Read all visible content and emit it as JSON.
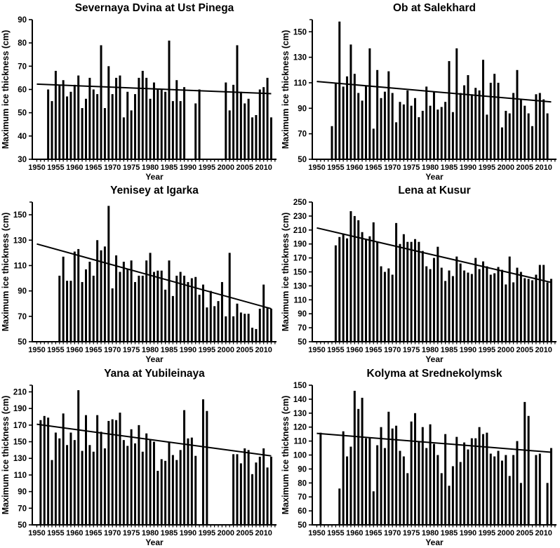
{
  "figure": {
    "background": "#ffffff",
    "bar_color": "#000000",
    "axis_color": "#000000",
    "trend_color": "#000000"
  },
  "chart_data": [
    {
      "type": "bar",
      "title": "Severnaya Dvina at Ust Pinega",
      "xlabel": "Year",
      "ylabel": "Maximum ice thickness (cm)",
      "ylim": [
        30,
        90
      ],
      "yticks": [
        30,
        40,
        50,
        60,
        70,
        80,
        90
      ],
      "xlim": [
        1948.8,
        2013.4
      ],
      "xticks": [
        1950,
        1955,
        1960,
        1965,
        1970,
        1975,
        1980,
        1985,
        1990,
        1995,
        2000,
        2005,
        2010
      ],
      "grid": false,
      "legend": "none",
      "start_year": 1953,
      "values": [
        60,
        55,
        68,
        62,
        64,
        57,
        59,
        62,
        66,
        52,
        56,
        65,
        60,
        58,
        79,
        52,
        70,
        58,
        65,
        66,
        48,
        59,
        51,
        58,
        65,
        68,
        65,
        56,
        63,
        60,
        60,
        59,
        81,
        55,
        64,
        55,
        61,
        null,
        null,
        54,
        60,
        null,
        null,
        null,
        null,
        null,
        null,
        63,
        51,
        62,
        79,
        59,
        54,
        56,
        48,
        49,
        60,
        61,
        65,
        48
      ],
      "trend": {
        "x": [
          1950,
          2012
        ],
        "y": [
          62.3,
          58.2
        ]
      }
    },
    {
      "type": "bar",
      "title": "Ob at Salekhard",
      "xlabel": "Year",
      "ylabel": "Maximum ice thickness (cm)",
      "ylim": [
        50,
        159.5
      ],
      "yticks": [
        50,
        70,
        90,
        110,
        130,
        150
      ],
      "xlim": [
        1948.8,
        2013.4
      ],
      "xticks": [
        1950,
        1955,
        1960,
        1965,
        1970,
        1975,
        1980,
        1985,
        1990,
        1995,
        2000,
        2005,
        2010
      ],
      "grid": false,
      "legend": "none",
      "start_year": 1954,
      "values": [
        76,
        110,
        158,
        107,
        115,
        140,
        117,
        102,
        96,
        108,
        137,
        74,
        120,
        98,
        103,
        119,
        102,
        79,
        95,
        93,
        104,
        92,
        98,
        83,
        88,
        107,
        92,
        103,
        89,
        91,
        95,
        127,
        87,
        137,
        102,
        108,
        116,
        101,
        106,
        104,
        128,
        85,
        110,
        117,
        110,
        75,
        88,
        86,
        102,
        120,
        97,
        92,
        86,
        76,
        101,
        102,
        97,
        86
      ],
      "trend": {
        "x": [
          1950,
          2012
        ],
        "y": [
          111,
          95
        ]
      }
    },
    {
      "type": "bar",
      "title": "Yenisey at Igarka",
      "xlabel": "Year",
      "ylabel": "Maximum ice thickness (cm)",
      "ylim": [
        50,
        160
      ],
      "yticks": [
        50,
        70,
        90,
        110,
        130,
        150
      ],
      "xlim": [
        1948.8,
        2013.4
      ],
      "xticks": [
        1950,
        1955,
        1960,
        1965,
        1970,
        1975,
        1980,
        1985,
        1990,
        1995,
        2000,
        2005,
        2010
      ],
      "grid": false,
      "legend": "none",
      "start_year": 1956,
      "values": [
        102,
        117,
        98,
        98,
        121,
        123,
        97,
        107,
        113,
        102,
        130,
        122,
        125,
        157,
        92,
        118,
        105,
        113,
        107,
        114,
        97,
        102,
        102,
        114,
        120,
        105,
        106,
        106,
        91,
        114,
        86,
        102,
        105,
        102,
        97,
        100,
        101,
        87,
        95,
        77,
        90,
        78,
        82,
        97,
        70,
        120,
        70,
        80,
        73,
        72,
        72,
        61,
        60,
        76,
        95,
        77,
        76
      ],
      "trend": {
        "x": [
          1950,
          2012
        ],
        "y": [
          127,
          76
        ]
      }
    },
    {
      "type": "bar",
      "title": "Lena at Kusur",
      "xlabel": "Year",
      "ylabel": "Maximum ice thickness (cm)",
      "ylim": [
        50,
        250
      ],
      "yticks": [
        50,
        70,
        90,
        110,
        130,
        150,
        170,
        190,
        210,
        230,
        250
      ],
      "xlim": [
        1948.8,
        2013.4
      ],
      "xticks": [
        1950,
        1955,
        1960,
        1965,
        1970,
        1975,
        1980,
        1985,
        1990,
        1995,
        2000,
        2005,
        2010
      ],
      "grid": false,
      "legend": "none",
      "start_year": 1955,
      "values": [
        188,
        200,
        205,
        198,
        237,
        230,
        224,
        207,
        196,
        201,
        221,
        193,
        158,
        150,
        155,
        146,
        220,
        190,
        204,
        193,
        193,
        197,
        193,
        180,
        158,
        154,
        170,
        186,
        156,
        137,
        152,
        144,
        172,
        162,
        152,
        149,
        147,
        170,
        154,
        165,
        158,
        146,
        148,
        157,
        153,
        132,
        172,
        135,
        156,
        150,
        141,
        140,
        138,
        146,
        160,
        160,
        135,
        140
      ],
      "trend": {
        "x": [
          1950,
          2012
        ],
        "y": [
          213,
          135
        ]
      }
    },
    {
      "type": "bar",
      "title": "Yana at Yubileinaya",
      "xlabel": "Year",
      "ylabel": "Maximum ice thickness (cm)",
      "ylim": [
        50,
        218
      ],
      "yticks": [
        50,
        70,
        90,
        110,
        130,
        150,
        170,
        190,
        210
      ],
      "xlim": [
        1948.8,
        2013.4
      ],
      "xticks": [
        1950,
        1955,
        1960,
        1965,
        1970,
        1975,
        1980,
        1985,
        1990,
        1995,
        2000,
        2005,
        2010
      ],
      "grid": false,
      "legend": "none",
      "start_year": 1951,
      "values": [
        176,
        181,
        179,
        128,
        161,
        154,
        184,
        146,
        161,
        152,
        212,
        139,
        182,
        146,
        138,
        182,
        162,
        142,
        175,
        177,
        176,
        185,
        152,
        145,
        165,
        148,
        170,
        138,
        160,
        152,
        150,
        115,
        129,
        127,
        149,
        134,
        128,
        140,
        188,
        154,
        155,
        133,
        null,
        201,
        187,
        null,
        null,
        null,
        null,
        null,
        null,
        135,
        135,
        124,
        142,
        140,
        111,
        125,
        132,
        142,
        119,
        132
      ],
      "trend": {
        "x": [
          1950,
          2012
        ],
        "y": [
          171,
          133
        ]
      }
    },
    {
      "type": "bar",
      "title": "Kolyma at Srednekolymsk",
      "xlabel": "Year",
      "ylabel": "Maximum ice thickness (cm)",
      "ylim": [
        50,
        150
      ],
      "yticks": [
        50,
        60,
        70,
        80,
        90,
        100,
        110,
        120,
        130,
        140,
        150
      ],
      "xlim": [
        1948.8,
        2013.4
      ],
      "xticks": [
        1950,
        1955,
        1960,
        1965,
        1970,
        1975,
        1980,
        1985,
        1990,
        1995,
        2000,
        2005,
        2010
      ],
      "grid": false,
      "legend": "none",
      "start_year": 1951,
      "values": [
        116,
        null,
        null,
        null,
        null,
        76,
        117,
        99,
        106,
        146,
        133,
        141,
        112,
        112,
        74,
        107,
        120,
        105,
        131,
        119,
        121,
        103,
        99,
        87,
        124,
        130,
        110,
        120,
        105,
        122,
        108,
        100,
        87,
        115,
        78,
        92,
        113,
        95,
        109,
        104,
        112,
        112,
        120,
        115,
        116,
        101,
        99,
        103,
        96,
        100,
        85,
        100,
        110,
        80,
        138,
        128,
        null,
        100,
        101,
        null,
        80,
        105
      ],
      "trend": {
        "x": [
          1950,
          2012
        ],
        "y": [
          115.5,
          102
        ]
      }
    }
  ]
}
